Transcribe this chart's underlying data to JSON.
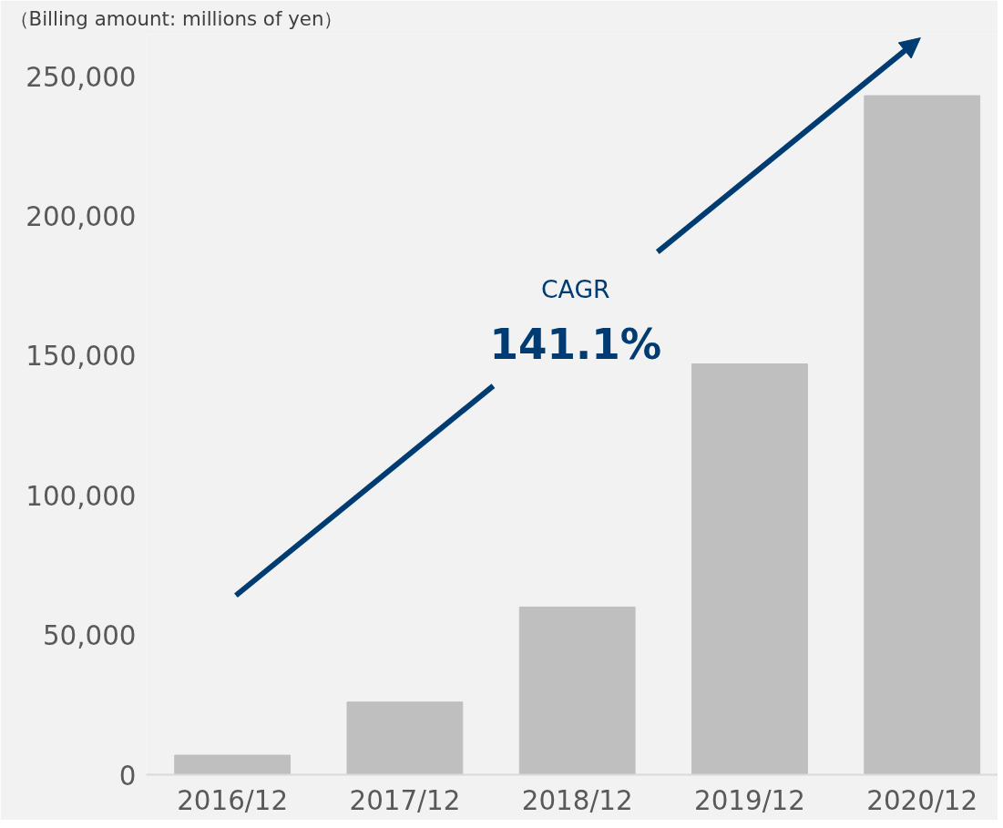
{
  "chart_data": {
    "type": "bar",
    "ylabel": "（Billing amount: millions of yen）",
    "categories": [
      "2016/12",
      "2017/12",
      "2018/12",
      "2019/12",
      "2020/12"
    ],
    "values": [
      7000,
      26000,
      60000,
      147000,
      243000
    ],
    "color": "#bfbfbf",
    "ylim": [
      0,
      265000
    ],
    "yticks": [
      {
        "value": 0,
        "label": "0"
      },
      {
        "value": 50000,
        "label": "50,000"
      },
      {
        "value": 100000,
        "label": "100,000"
      },
      {
        "value": 150000,
        "label": "150,000"
      },
      {
        "value": 200000,
        "label": "200,000"
      },
      {
        "value": 250000,
        "label": "250,000"
      }
    ],
    "annotations": [
      "CAGR",
      "141.1%"
    ],
    "grid": false
  }
}
